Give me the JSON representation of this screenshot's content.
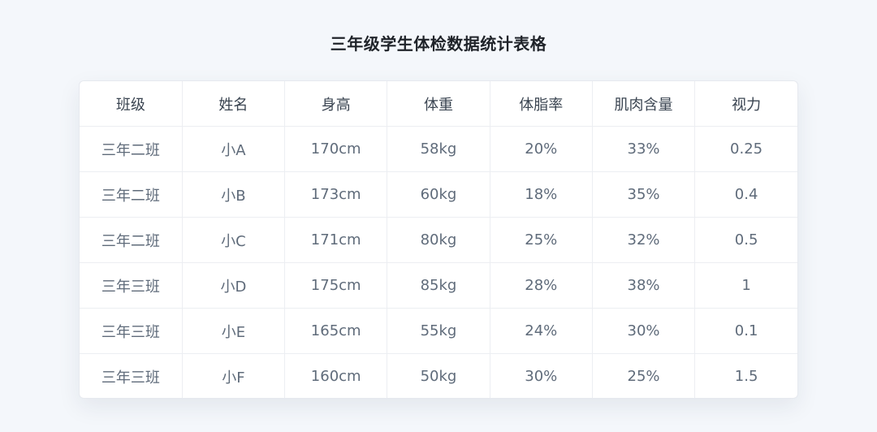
{
  "page": {
    "title": "三年级学生体检数据统计表格"
  },
  "table": {
    "headers": [
      "班级",
      "姓名",
      "身高",
      "体重",
      "体脂率",
      "肌肉含量",
      "视力"
    ],
    "rows": [
      [
        "三年二班",
        "小A",
        "170cm",
        "58kg",
        "20%",
        "33%",
        "0.25"
      ],
      [
        "三年二班",
        "小B",
        "173cm",
        "60kg",
        "18%",
        "35%",
        "0.4"
      ],
      [
        "三年二班",
        "小C",
        "171cm",
        "80kg",
        "25%",
        "32%",
        "0.5"
      ],
      [
        "三年三班",
        "小D",
        "175cm",
        "85kg",
        "28%",
        "38%",
        "1"
      ],
      [
        "三年三班",
        "小E",
        "165cm",
        "55kg",
        "24%",
        "30%",
        "0.1"
      ],
      [
        "三年三班",
        "小F",
        "160cm",
        "50kg",
        "30%",
        "25%",
        "1.5"
      ]
    ]
  }
}
